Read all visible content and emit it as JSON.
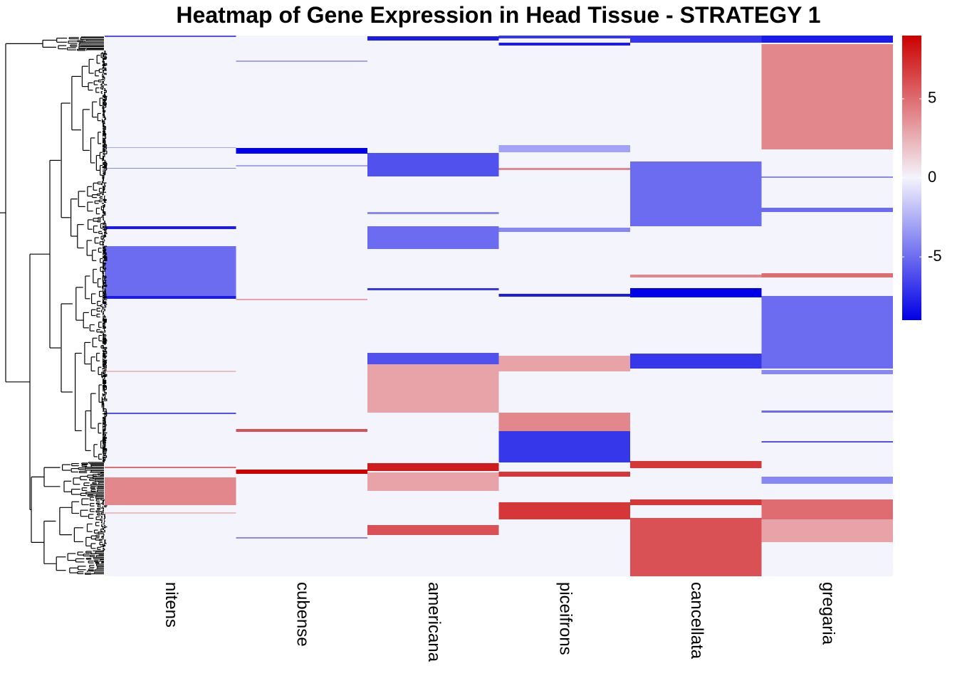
{
  "chart_data": {
    "type": "heatmap",
    "title": "Heatmap of Gene Expression in Head Tissue - STRATEGY 1",
    "columns": [
      "nitens",
      "cubense",
      "americana",
      "piceifrons",
      "cancellata",
      "gregaria"
    ],
    "row_count": 760,
    "row_dendrogram": true,
    "colorbar": {
      "ticks": [
        5,
        0,
        -5
      ],
      "range": [
        -9,
        9
      ],
      "colors": {
        "low": "#0000e6",
        "mid": "#f4f4fc",
        "high": "#cc0000"
      }
    },
    "row_blocks": [
      {
        "column": "nitens",
        "rows": [
          0,
          2
        ],
        "value": -6
      },
      {
        "column": "nitens",
        "rows": [
          157,
          158
        ],
        "value": -3
      },
      {
        "column": "nitens",
        "rows": [
          186,
          187
        ],
        "value": -4
      },
      {
        "column": "nitens",
        "rows": [
          268,
          272
        ],
        "value": -8
      },
      {
        "column": "nitens",
        "rows": [
          296,
          366
        ],
        "value": -5
      },
      {
        "column": "nitens",
        "rows": [
          366,
          370
        ],
        "value": -8
      },
      {
        "column": "nitens",
        "rows": [
          471,
          473
        ],
        "value": 2
      },
      {
        "column": "nitens",
        "rows": [
          530,
          532
        ],
        "value": -6
      },
      {
        "column": "nitens",
        "rows": [
          606,
          608
        ],
        "value": 5
      },
      {
        "column": "nitens",
        "rows": [
          621,
          660
        ],
        "value": 4
      },
      {
        "column": "nitens",
        "rows": [
          670,
          672
        ],
        "value": 2
      },
      {
        "column": "cubense",
        "rows": [
          35,
          37
        ],
        "value": -3
      },
      {
        "column": "cubense",
        "rows": [
          158,
          166
        ],
        "value": -9
      },
      {
        "column": "cubense",
        "rows": [
          182,
          184
        ],
        "value": -3
      },
      {
        "column": "cubense",
        "rows": [
          370,
          372
        ],
        "value": 3
      },
      {
        "column": "cubense",
        "rows": [
          553,
          557
        ],
        "value": 6
      },
      {
        "column": "cubense",
        "rows": [
          610,
          616
        ],
        "value": 9
      },
      {
        "column": "cubense",
        "rows": [
          705,
          707
        ],
        "value": -4
      },
      {
        "column": "americana",
        "rows": [
          1,
          7
        ],
        "value": -8
      },
      {
        "column": "americana",
        "rows": [
          165,
          198
        ],
        "value": -6
      },
      {
        "column": "americana",
        "rows": [
          248,
          251
        ],
        "value": -4
      },
      {
        "column": "americana",
        "rows": [
          268,
          300
        ],
        "value": -5
      },
      {
        "column": "americana",
        "rows": [
          355,
          358
        ],
        "value": -7
      },
      {
        "column": "americana",
        "rows": [
          446,
          462
        ],
        "value": -6
      },
      {
        "column": "americana",
        "rows": [
          462,
          530
        ],
        "value": 3
      },
      {
        "column": "americana",
        "rows": [
          601,
          612
        ],
        "value": 8
      },
      {
        "column": "americana",
        "rows": [
          614,
          640
        ],
        "value": 3
      },
      {
        "column": "americana",
        "rows": [
          688,
          702
        ],
        "value": 6
      },
      {
        "column": "piceifrons",
        "rows": [
          0,
          4
        ],
        "value": -7
      },
      {
        "column": "piceifrons",
        "rows": [
          10,
          14
        ],
        "value": -8
      },
      {
        "column": "piceifrons",
        "rows": [
          154,
          164
        ],
        "value": -3
      },
      {
        "column": "piceifrons",
        "rows": [
          186,
          189
        ],
        "value": 4
      },
      {
        "column": "piceifrons",
        "rows": [
          270,
          276
        ],
        "value": -4
      },
      {
        "column": "piceifrons",
        "rows": [
          363,
          367
        ],
        "value": -8
      },
      {
        "column": "piceifrons",
        "rows": [
          450,
          472
        ],
        "value": 3
      },
      {
        "column": "piceifrons",
        "rows": [
          530,
          556
        ],
        "value": 4
      },
      {
        "column": "piceifrons",
        "rows": [
          556,
          600
        ],
        "value": -7
      },
      {
        "column": "piceifrons",
        "rows": [
          613,
          620
        ],
        "value": 7
      },
      {
        "column": "piceifrons",
        "rows": [
          656,
          680
        ],
        "value": 7
      },
      {
        "column": "cancellata",
        "rows": [
          0,
          10
        ],
        "value": -7
      },
      {
        "column": "cancellata",
        "rows": [
          177,
          268
        ],
        "value": -5
      },
      {
        "column": "cancellata",
        "rows": [
          336,
          340
        ],
        "value": 4
      },
      {
        "column": "cancellata",
        "rows": [
          355,
          368
        ],
        "value": -9
      },
      {
        "column": "cancellata",
        "rows": [
          447,
          468
        ],
        "value": -7
      },
      {
        "column": "cancellata",
        "rows": [
          598,
          608
        ],
        "value": 7
      },
      {
        "column": "cancellata",
        "rows": [
          652,
          660
        ],
        "value": 7
      },
      {
        "column": "cancellata",
        "rows": [
          678,
          760
        ],
        "value": 6
      },
      {
        "column": "gregaria",
        "rows": [
          0,
          10
        ],
        "value": -8
      },
      {
        "column": "gregaria",
        "rows": [
          12,
          160
        ],
        "value": 4
      },
      {
        "column": "gregaria",
        "rows": [
          198,
          200
        ],
        "value": -4
      },
      {
        "column": "gregaria",
        "rows": [
          242,
          248
        ],
        "value": -5
      },
      {
        "column": "gregaria",
        "rows": [
          334,
          340
        ],
        "value": 5
      },
      {
        "column": "gregaria",
        "rows": [
          366,
          468
        ],
        "value": -5
      },
      {
        "column": "gregaria",
        "rows": [
          470,
          476
        ],
        "value": -4
      },
      {
        "column": "gregaria",
        "rows": [
          527,
          530
        ],
        "value": -5
      },
      {
        "column": "gregaria",
        "rows": [
          570,
          572
        ],
        "value": -6
      },
      {
        "column": "gregaria",
        "rows": [
          620,
          630
        ],
        "value": -4
      },
      {
        "column": "gregaria",
        "rows": [
          652,
          680
        ],
        "value": 5
      },
      {
        "column": "gregaria",
        "rows": [
          680,
          712
        ],
        "value": 3
      }
    ]
  }
}
